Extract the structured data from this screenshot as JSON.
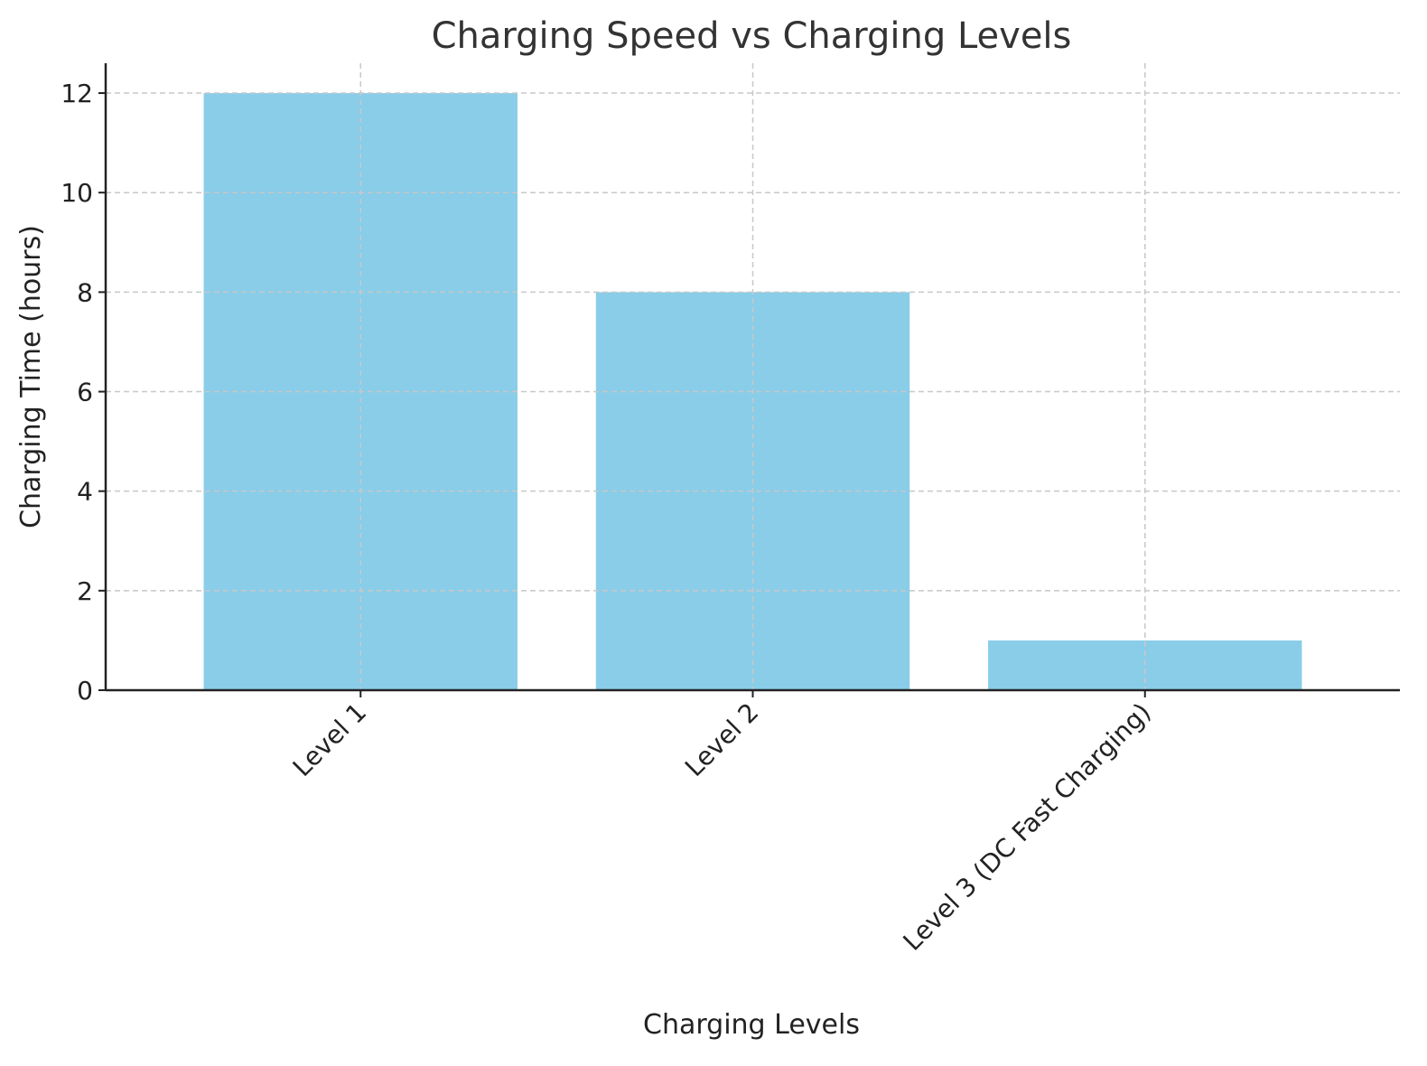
{
  "chart_data": {
    "type": "bar",
    "title": "Charging Speed vs Charging Levels",
    "xlabel": "Charging Levels",
    "ylabel": "Charging Time (hours)",
    "categories": [
      "Level 1",
      "Level 2",
      "Level 3 (DC Fast Charging)"
    ],
    "values": [
      12,
      8,
      1
    ],
    "ylim": [
      0,
      12.6
    ],
    "yticks": [
      0,
      2,
      4,
      6,
      8,
      10,
      12
    ],
    "grid": true,
    "bar_color": "#89cde9",
    "legend": "none"
  }
}
